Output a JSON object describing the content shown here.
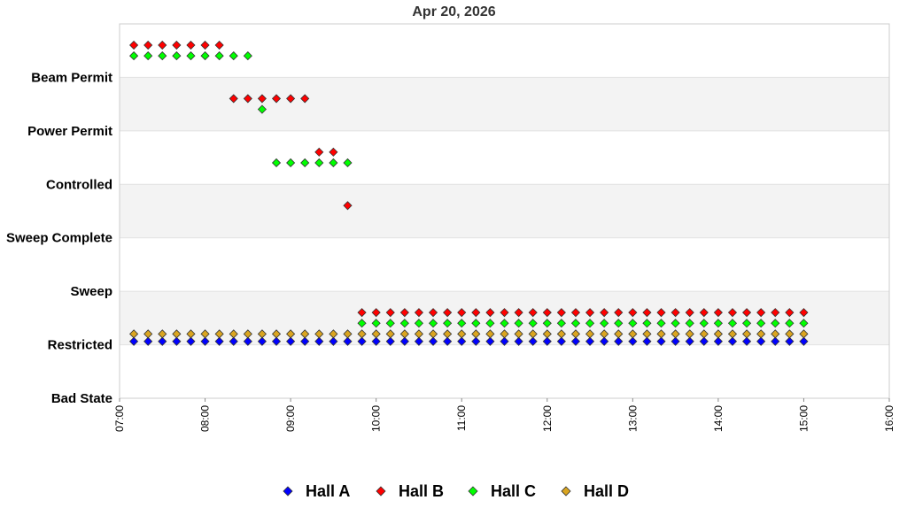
{
  "chart_data": {
    "type": "scatter",
    "title": "Apr 20, 2026",
    "y_categories": [
      "Bad State",
      "Restricted",
      "Sweep",
      "Sweep Complete",
      "Controlled",
      "Power Permit",
      "Beam Permit"
    ],
    "x_ticks": [
      "07:00",
      "08:00",
      "09:00",
      "10:00",
      "11:00",
      "12:00",
      "13:00",
      "14:00",
      "15:00",
      "16:00"
    ],
    "xlim": [
      "07:00",
      "16:00"
    ],
    "x_interval_minutes": 10,
    "band_colors": [
      "#f3f3f3",
      "#ffffff"
    ],
    "legend_position": "bottom",
    "series": [
      {
        "name": "Hall A",
        "color": "#0000ff",
        "points": [
          {
            "from": "07:10",
            "to": "15:00",
            "state": "Restricted"
          }
        ]
      },
      {
        "name": "Hall B",
        "color": "#ff0000",
        "points": [
          {
            "from": "07:10",
            "to": "08:10",
            "state": "Beam Permit"
          },
          {
            "from": "08:20",
            "to": "09:10",
            "state": "Power Permit"
          },
          {
            "from": "09:20",
            "to": "09:30",
            "state": "Controlled"
          },
          {
            "from": "09:40",
            "to": "09:40",
            "state": "Sweep Complete"
          },
          {
            "from": "09:50",
            "to": "15:00",
            "state": "Restricted"
          }
        ]
      },
      {
        "name": "Hall C",
        "color": "#00ff00",
        "points": [
          {
            "from": "07:10",
            "to": "08:30",
            "state": "Beam Permit"
          },
          {
            "from": "08:40",
            "to": "08:40",
            "state": "Power Permit"
          },
          {
            "from": "08:50",
            "to": "09:40",
            "state": "Controlled"
          },
          {
            "from": "09:50",
            "to": "15:00",
            "state": "Restricted"
          }
        ]
      },
      {
        "name": "Hall D",
        "color": "#daa520",
        "points": [
          {
            "from": "07:10",
            "to": "15:00",
            "state": "Restricted"
          }
        ]
      }
    ]
  }
}
